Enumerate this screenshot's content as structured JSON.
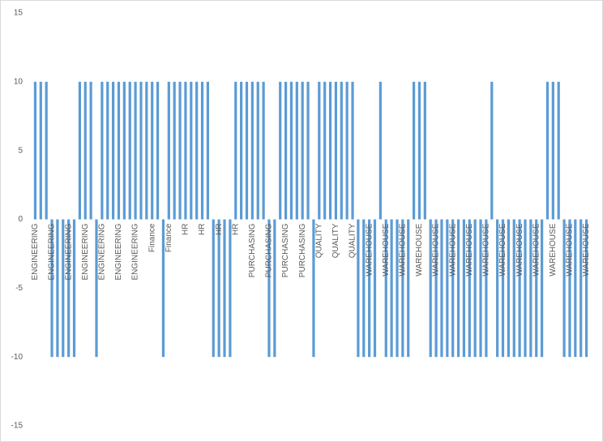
{
  "chart_data": {
    "type": "bar",
    "color": "#5b9bd5",
    "ylim": [
      -15,
      15
    ],
    "yticks": [
      -15,
      -10,
      -5,
      0,
      5,
      10,
      15
    ],
    "grid": false,
    "categories": [
      "ENGINEERING",
      null,
      null,
      "ENGINEERING",
      null,
      null,
      "ENGINEERING",
      null,
      null,
      "ENGINEERING",
      null,
      null,
      "ENGINEERING",
      null,
      null,
      "ENGINEERING",
      null,
      null,
      "ENGINEERING",
      null,
      null,
      "Finance",
      null,
      null,
      "Finance",
      null,
      null,
      "HR",
      null,
      null,
      "HR",
      null,
      null,
      "HR",
      null,
      null,
      "HR",
      null,
      null,
      "PURCHASING",
      null,
      null,
      "PURCHASING",
      null,
      null,
      "PURCHASING",
      null,
      null,
      "PURCHASING",
      null,
      null,
      "QUALITY",
      null,
      null,
      "QUALITY",
      null,
      null,
      "QUALITY",
      null,
      null,
      "WAREHOUSE",
      null,
      null,
      "WAREHOUSE",
      null,
      null,
      "WAREHOUSE",
      null,
      null,
      "WAREHOUSE",
      null,
      null,
      "WAREHOUSE",
      null,
      null,
      "WAREHOUSE",
      null,
      null,
      "WAREHOUSE",
      null,
      null,
      "WAREHOUSE",
      null,
      null,
      "WAREHOUSE",
      null,
      null,
      "WAREHOUSE",
      null,
      null,
      "WAREHOUSE",
      null,
      null,
      "WAREHOUSE",
      null,
      null,
      "WAREHOUSE",
      null,
      null,
      "WAREHOUSE"
    ],
    "values": [
      10,
      10,
      10,
      -10,
      -10,
      -10,
      -10,
      -10,
      10,
      10,
      10,
      -10,
      10,
      10,
      10,
      10,
      10,
      10,
      10,
      10,
      10,
      10,
      10,
      -10,
      10,
      10,
      10,
      10,
      10,
      10,
      10,
      10,
      -10,
      -10,
      -10,
      -10,
      10,
      10,
      10,
      10,
      10,
      10,
      -10,
      -10,
      10,
      10,
      10,
      10,
      10,
      10,
      -10,
      10,
      10,
      10,
      10,
      10,
      10,
      10,
      -10,
      -10,
      -10,
      -10,
      10,
      -10,
      -10,
      -10,
      -10,
      -10,
      10,
      10,
      10,
      -10,
      -10,
      -10,
      -10,
      -10,
      -10,
      -10,
      -10,
      -10,
      -10,
      -10,
      10,
      -10,
      -10,
      -10,
      -10,
      -10,
      -10,
      -10,
      -10,
      -10,
      10,
      10,
      10,
      -10,
      -10,
      -10,
      -10,
      -10
    ]
  }
}
